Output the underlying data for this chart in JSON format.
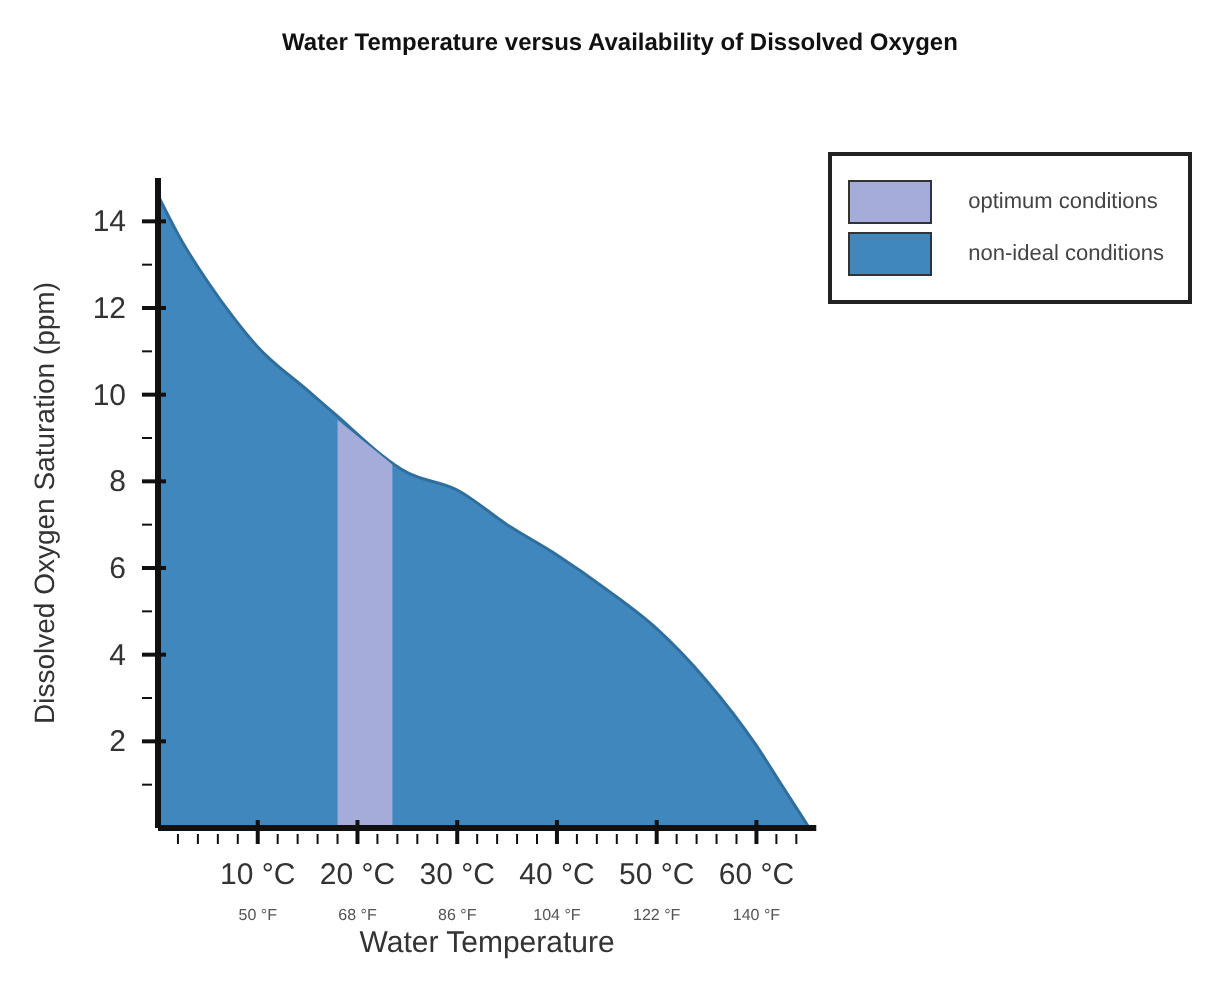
{
  "chart_data": {
    "type": "area",
    "title": "Water Temperature versus Availability of Dissolved Oxygen",
    "xlabel": "Water Temperature",
    "ylabel": "Dissolved Oxygen Saturation (ppm)",
    "series": [
      {
        "name": "non-ideal conditions",
        "color": "#3f87bd",
        "x": [
          0,
          2.5,
          5,
          7.5,
          10,
          15,
          17.5,
          25,
          30,
          35,
          40,
          45,
          50,
          55,
          60,
          62.5,
          65.3
        ],
        "values": [
          14.6,
          13.5,
          12.6,
          11.8,
          11.1,
          10.1,
          9.6,
          8.2,
          7.8,
          7.0,
          6.3,
          5.5,
          4.6,
          3.4,
          1.9,
          1.0,
          0
        ]
      }
    ],
    "bands": [
      {
        "axis": "x",
        "from": 18,
        "to": 23.5,
        "label": "optimum conditions",
        "color": "#a6acd9"
      }
    ],
    "xlim": [
      0,
      66
    ],
    "x2lim": [
      32,
      150.8
    ],
    "x2ticks": [
      {
        "value": 50,
        "label": "50 °F"
      },
      {
        "value": 68,
        "label": "68 °F"
      },
      {
        "value": 86,
        "label": "86 °F"
      },
      {
        "value": 104,
        "label": "104 °F"
      },
      {
        "value": 122,
        "label": "122 °F"
      },
      {
        "value": 140,
        "label": "140 °F"
      }
    ],
    "xticks": [
      {
        "value": 2,
        "label": null
      },
      {
        "value": 4,
        "label": null
      },
      {
        "value": 6,
        "label": null
      },
      {
        "value": 8,
        "label": null
      },
      {
        "value": 10,
        "label": "10 °C"
      },
      {
        "value": 12,
        "label": null
      },
      {
        "value": 14,
        "label": null
      },
      {
        "value": 16,
        "label": null
      },
      {
        "value": 18,
        "label": null
      },
      {
        "value": 20,
        "label": "20 °C"
      },
      {
        "value": 22,
        "label": null
      },
      {
        "value": 24,
        "label": null
      },
      {
        "value": 26,
        "label": null
      },
      {
        "value": 28,
        "label": null
      },
      {
        "value": 30,
        "label": "30 °C"
      },
      {
        "value": 32,
        "label": null
      },
      {
        "value": 34,
        "label": null
      },
      {
        "value": 36,
        "label": null
      },
      {
        "value": 38,
        "label": null
      },
      {
        "value": 40,
        "label": "40 °C"
      },
      {
        "value": 42,
        "label": null
      },
      {
        "value": 44,
        "label": null
      },
      {
        "value": 46,
        "label": null
      },
      {
        "value": 48,
        "label": null
      },
      {
        "value": 50,
        "label": "50 °C"
      },
      {
        "value": 52,
        "label": null
      },
      {
        "value": 54,
        "label": null
      },
      {
        "value": 56,
        "label": null
      },
      {
        "value": 58,
        "label": null
      },
      {
        "value": 60,
        "label": "60 °C"
      },
      {
        "value": 62,
        "label": null
      },
      {
        "value": 64,
        "label": null
      }
    ],
    "ylim": [
      0,
      15
    ],
    "yticks": [
      {
        "value": 1,
        "label": null
      },
      2,
      {
        "value": 3,
        "label": null
      },
      4,
      {
        "value": 5,
        "label": null
      },
      6,
      {
        "value": 7,
        "label": null
      },
      8,
      {
        "value": 9,
        "label": null
      },
      10,
      {
        "value": 11,
        "label": null
      },
      12,
      {
        "value": 13,
        "label": null
      },
      14
    ],
    "legend": "top right"
  }
}
